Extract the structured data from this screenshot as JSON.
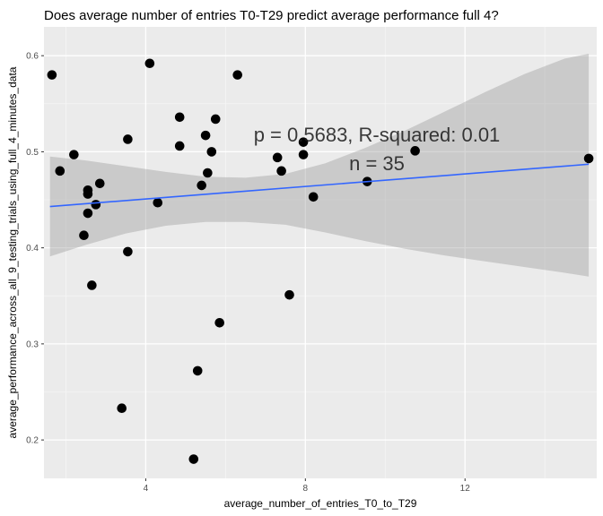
{
  "chart_data": {
    "type": "scatter",
    "title": "Does average number of entries T0-T29 predict average performance full 4?",
    "xlabel": "average_number_of_entries_T0_to_T29",
    "ylabel": "average_performance_across_all_9_testing_trials_using_full_4_minutes_data",
    "xlim": [
      1.45,
      15.3
    ],
    "ylim": [
      0.16,
      0.63
    ],
    "x_ticks": [
      4,
      8,
      12
    ],
    "y_ticks": [
      0.2,
      0.3,
      0.4,
      0.5,
      0.6
    ],
    "grid": true,
    "points": [
      {
        "x": 1.65,
        "y": 0.58
      },
      {
        "x": 1.85,
        "y": 0.48
      },
      {
        "x": 2.2,
        "y": 0.497
      },
      {
        "x": 2.45,
        "y": 0.413
      },
      {
        "x": 2.55,
        "y": 0.46
      },
      {
        "x": 2.55,
        "y": 0.456
      },
      {
        "x": 2.55,
        "y": 0.436
      },
      {
        "x": 2.65,
        "y": 0.361
      },
      {
        "x": 2.75,
        "y": 0.445
      },
      {
        "x": 2.85,
        "y": 0.467
      },
      {
        "x": 3.4,
        "y": 0.233
      },
      {
        "x": 3.55,
        "y": 0.513
      },
      {
        "x": 3.55,
        "y": 0.396
      },
      {
        "x": 4.1,
        "y": 0.592
      },
      {
        "x": 4.3,
        "y": 0.447
      },
      {
        "x": 4.85,
        "y": 0.536
      },
      {
        "x": 4.85,
        "y": 0.506
      },
      {
        "x": 5.2,
        "y": 0.18
      },
      {
        "x": 5.3,
        "y": 0.272
      },
      {
        "x": 5.4,
        "y": 0.465
      },
      {
        "x": 5.5,
        "y": 0.517
      },
      {
        "x": 5.55,
        "y": 0.478
      },
      {
        "x": 5.65,
        "y": 0.5
      },
      {
        "x": 5.75,
        "y": 0.534
      },
      {
        "x": 5.85,
        "y": 0.322
      },
      {
        "x": 6.3,
        "y": 0.58
      },
      {
        "x": 7.3,
        "y": 0.494
      },
      {
        "x": 7.4,
        "y": 0.48
      },
      {
        "x": 7.6,
        "y": 0.351
      },
      {
        "x": 7.95,
        "y": 0.497
      },
      {
        "x": 7.95,
        "y": 0.51
      },
      {
        "x": 8.2,
        "y": 0.453
      },
      {
        "x": 9.55,
        "y": 0.469
      },
      {
        "x": 10.75,
        "y": 0.501
      },
      {
        "x": 15.1,
        "y": 0.493
      }
    ],
    "regression": {
      "x0": 1.6,
      "y0": 0.443,
      "x1": 15.1,
      "y1": 0.487
    },
    "confidence_band": {
      "x": [
        1.6,
        2.5,
        3.5,
        4.5,
        5.5,
        6.5,
        7.5,
        8.5,
        9.5,
        10.5,
        11.5,
        12.5,
        13.5,
        14.5,
        15.1
      ],
      "upper": [
        0.495,
        0.491,
        0.485,
        0.479,
        0.474,
        0.473,
        0.477,
        0.488,
        0.504,
        0.522,
        0.542,
        0.562,
        0.581,
        0.597,
        0.602
      ],
      "lower": [
        0.391,
        0.403,
        0.415,
        0.423,
        0.427,
        0.427,
        0.424,
        0.416,
        0.407,
        0.399,
        0.392,
        0.386,
        0.38,
        0.374,
        0.37
      ]
    },
    "annotations": [
      "p = 0.5683, R-squared:  0.01",
      "n = 35"
    ],
    "colors": {
      "panel_bg": "#ebebeb",
      "grid_major": "#ffffff",
      "grid_minor": "#f5f5f5",
      "point": "#000000",
      "line": "#3366ff",
      "band": "#999999"
    }
  }
}
